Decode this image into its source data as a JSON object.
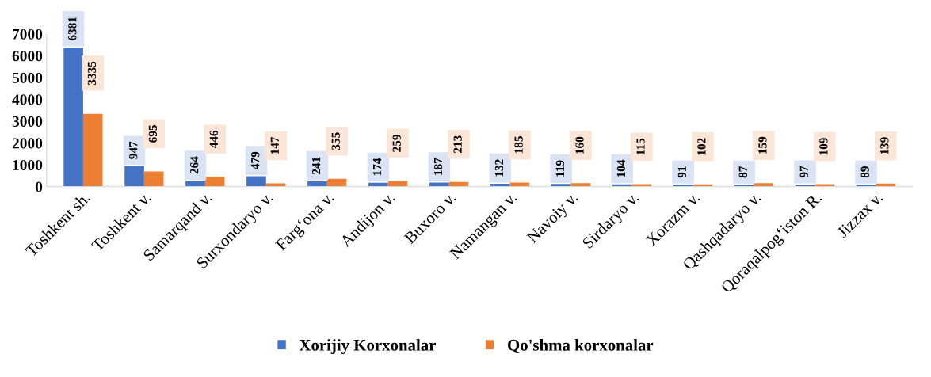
{
  "chart_data": {
    "type": "bar",
    "categories": [
      "Toshkent sh.",
      "Toshkent v.",
      "Samarqand v.",
      "Surxondaryo v.",
      "Farg‘ona v.",
      "Andijon v.",
      "Buxoro v.",
      "Namangan v.",
      "Navoiy v.",
      "Sirdaryo v.",
      "Xorazm v.",
      "Qashqadaryo v.",
      "Qoraqalpog‘iston R.",
      "Jizzax v."
    ],
    "series": [
      {
        "name": "Xorijiy Korxonalar",
        "color": "#4472c4",
        "values": [
          6381,
          947,
          264,
          479,
          241,
          174,
          187,
          132,
          119,
          104,
          91,
          87,
          97,
          89
        ]
      },
      {
        "name": "Qo'shma korxonalar",
        "color": "#ed7d31",
        "values": [
          3335,
          695,
          446,
          147,
          355,
          259,
          213,
          185,
          160,
          115,
          102,
          159,
          109,
          139
        ]
      }
    ],
    "ylim": [
      0,
      7000
    ],
    "yticks": [
      0,
      1000,
      2000,
      3000,
      4000,
      5000,
      6000,
      7000
    ],
    "data_labels": true,
    "grid": false,
    "legend": "bottom"
  }
}
